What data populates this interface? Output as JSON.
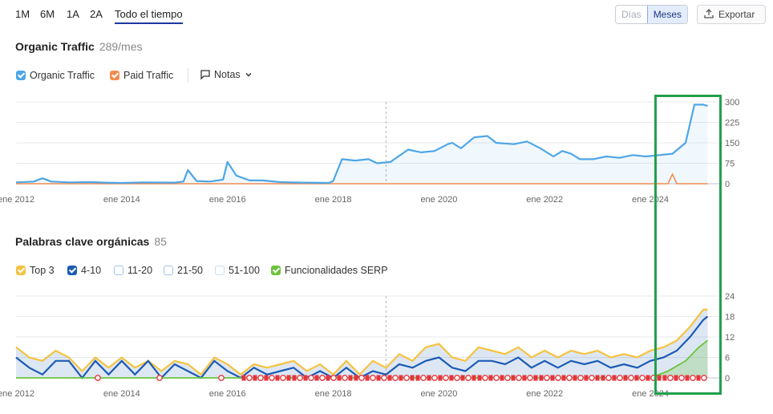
{
  "range_tabs": {
    "t1": "1M",
    "t2": "6M",
    "t3": "1A",
    "t4": "2A",
    "t5": "Todo el tiempo"
  },
  "granularity": {
    "days": "Días",
    "months": "Meses"
  },
  "export_label": "Exportar",
  "traffic": {
    "title": "Organic Traffic",
    "subtitle": "289/mes",
    "legend_organic": "Organic Traffic",
    "legend_paid": "Paid Traffic",
    "notes": "Notas"
  },
  "keywords": {
    "title": "Palabras clave orgánicas",
    "subtitle": "85",
    "legend_top3": "Top 3",
    "legend_4_10": "4-10",
    "legend_11_20": "11-20",
    "legend_21_50": "21-50",
    "legend_51_100": "51-100",
    "legend_serp": "Funcionalidades SERP"
  },
  "colors": {
    "organic": "#4ea6e6",
    "paid": "#f28b4f",
    "top3": "#f5c342",
    "k4_10": "#1d5bb4",
    "serp": "#6cc33c",
    "highlight": "#22a04b",
    "marker_red": "#e8323c"
  },
  "chart_data": [
    {
      "type": "area",
      "title": "Organic Traffic",
      "x_ticks": [
        "ene 2012",
        "ene 2014",
        "ene 2016",
        "ene 2018",
        "ene 2020",
        "ene 2022",
        "ene 2024"
      ],
      "y_ticks": [
        "300",
        "225",
        "150",
        "75",
        "0"
      ],
      "ylim": [
        0,
        300
      ],
      "xlim": [
        "2012-01",
        "2025-03"
      ],
      "series": [
        {
          "name": "Organic Traffic",
          "points": [
            [
              "2012-01",
              5
            ],
            [
              "2012-05",
              8
            ],
            [
              "2012-07",
              20
            ],
            [
              "2012-09",
              8
            ],
            [
              "2013-01",
              5
            ],
            [
              "2013-06",
              6
            ],
            [
              "2013-09",
              4
            ],
            [
              "2014-01",
              3
            ],
            [
              "2014-06",
              5
            ],
            [
              "2015-01",
              4
            ],
            [
              "2015-03",
              8
            ],
            [
              "2015-04",
              50
            ],
            [
              "2015-06",
              10
            ],
            [
              "2015-09",
              8
            ],
            [
              "2015-12",
              15
            ],
            [
              "2016-01",
              80
            ],
            [
              "2016-03",
              30
            ],
            [
              "2016-06",
              12
            ],
            [
              "2016-09",
              12
            ],
            [
              "2017-01",
              6
            ],
            [
              "2017-06",
              4
            ],
            [
              "2017-12",
              3
            ],
            [
              "2018-01",
              10
            ],
            [
              "2018-03",
              90
            ],
            [
              "2018-06",
              85
            ],
            [
              "2018-09",
              90
            ],
            [
              "2018-11",
              75
            ],
            [
              "2019-02",
              80
            ],
            [
              "2019-06",
              125
            ],
            [
              "2019-09",
              115
            ],
            [
              "2019-12",
              120
            ],
            [
              "2020-03",
              145
            ],
            [
              "2020-04",
              150
            ],
            [
              "2020-06",
              130
            ],
            [
              "2020-09",
              170
            ],
            [
              "2020-12",
              175
            ],
            [
              "2021-02",
              150
            ],
            [
              "2021-06",
              145
            ],
            [
              "2021-09",
              155
            ],
            [
              "2021-12",
              130
            ],
            [
              "2022-03",
              100
            ],
            [
              "2022-05",
              120
            ],
            [
              "2022-07",
              110
            ],
            [
              "2022-09",
              90
            ],
            [
              "2022-12",
              90
            ],
            [
              "2023-03",
              100
            ],
            [
              "2023-06",
              95
            ],
            [
              "2023-09",
              105
            ],
            [
              "2023-12",
              100
            ],
            [
              "2024-03",
              105
            ],
            [
              "2024-06",
              110
            ],
            [
              "2024-09",
              150
            ],
            [
              "2024-11",
              290
            ],
            [
              "2025-01",
              290
            ],
            [
              "2025-02",
              285
            ]
          ]
        },
        {
          "name": "Paid Traffic",
          "points": [
            [
              "2012-01",
              0
            ],
            [
              "2024-01",
              0
            ],
            [
              "2024-05",
              0
            ],
            [
              "2024-06",
              35
            ],
            [
              "2024-07",
              0
            ],
            [
              "2025-02",
              0
            ]
          ]
        }
      ]
    },
    {
      "type": "area",
      "title": "Palabras clave orgánicas",
      "x_ticks": [
        "ene 2012",
        "ene 2014",
        "ene 2016",
        "ene 2018",
        "ene 2020",
        "ene 2022",
        "ene 2024"
      ],
      "y_ticks": [
        "24",
        "18",
        "12",
        "6",
        "0"
      ],
      "ylim": [
        0,
        24
      ],
      "xlim": [
        "2012-01",
        "2025-03"
      ],
      "series": [
        {
          "name": "Top 3",
          "points": [
            [
              "2012-01",
              9
            ],
            [
              "2012-04",
              6
            ],
            [
              "2012-07",
              5
            ],
            [
              "2012-10",
              8
            ],
            [
              "2013-01",
              6
            ],
            [
              "2013-04",
              2
            ],
            [
              "2013-07",
              6
            ],
            [
              "2013-10",
              3
            ],
            [
              "2014-01",
              6
            ],
            [
              "2014-04",
              3
            ],
            [
              "2014-07",
              5
            ],
            [
              "2014-10",
              2
            ],
            [
              "2015-01",
              5
            ],
            [
              "2015-04",
              4
            ],
            [
              "2015-07",
              1
            ],
            [
              "2015-10",
              6
            ],
            [
              "2016-01",
              4
            ],
            [
              "2016-04",
              1
            ],
            [
              "2016-07",
              4
            ],
            [
              "2016-10",
              3
            ],
            [
              "2017-01",
              4
            ],
            [
              "2017-04",
              5
            ],
            [
              "2017-07",
              2
            ],
            [
              "2017-10",
              4
            ],
            [
              "2018-01",
              1
            ],
            [
              "2018-04",
              5
            ],
            [
              "2018-07",
              1
            ],
            [
              "2018-10",
              5
            ],
            [
              "2019-01",
              3
            ],
            [
              "2019-04",
              7
            ],
            [
              "2019-07",
              5
            ],
            [
              "2019-10",
              9
            ],
            [
              "2020-01",
              10
            ],
            [
              "2020-04",
              6
            ],
            [
              "2020-07",
              5
            ],
            [
              "2020-10",
              9
            ],
            [
              "2021-01",
              8
            ],
            [
              "2021-04",
              7
            ],
            [
              "2021-07",
              9
            ],
            [
              "2021-10",
              6
            ],
            [
              "2022-01",
              8
            ],
            [
              "2022-04",
              6
            ],
            [
              "2022-07",
              8
            ],
            [
              "2022-10",
              7
            ],
            [
              "2023-01",
              8
            ],
            [
              "2023-04",
              6
            ],
            [
              "2023-07",
              7
            ],
            [
              "2023-10",
              6
            ],
            [
              "2024-01",
              8
            ],
            [
              "2024-04",
              9
            ],
            [
              "2024-07",
              11
            ],
            [
              "2024-10",
              15
            ],
            [
              "2025-01",
              20
            ],
            [
              "2025-02",
              20
            ]
          ]
        },
        {
          "name": "4-10",
          "points": [
            [
              "2012-01",
              6
            ],
            [
              "2012-04",
              3
            ],
            [
              "2012-07",
              1
            ],
            [
              "2012-10",
              5
            ],
            [
              "2013-01",
              5
            ],
            [
              "2013-04",
              0
            ],
            [
              "2013-07",
              5
            ],
            [
              "2013-10",
              1
            ],
            [
              "2014-01",
              5
            ],
            [
              "2014-04",
              1
            ],
            [
              "2014-07",
              5
            ],
            [
              "2014-10",
              0
            ],
            [
              "2015-01",
              4
            ],
            [
              "2015-04",
              2
            ],
            [
              "2015-07",
              0
            ],
            [
              "2015-10",
              5
            ],
            [
              "2016-01",
              2
            ],
            [
              "2016-04",
              0
            ],
            [
              "2016-07",
              3
            ],
            [
              "2016-10",
              1
            ],
            [
              "2017-01",
              2
            ],
            [
              "2017-04",
              3
            ],
            [
              "2017-07",
              0
            ],
            [
              "2017-10",
              2
            ],
            [
              "2018-01",
              0
            ],
            [
              "2018-04",
              3
            ],
            [
              "2018-07",
              0
            ],
            [
              "2018-10",
              2
            ],
            [
              "2019-01",
              1
            ],
            [
              "2019-04",
              4
            ],
            [
              "2019-07",
              3
            ],
            [
              "2019-10",
              5
            ],
            [
              "2020-01",
              6
            ],
            [
              "2020-04",
              3
            ],
            [
              "2020-07",
              2
            ],
            [
              "2020-10",
              5
            ],
            [
              "2021-01",
              5
            ],
            [
              "2021-04",
              4
            ],
            [
              "2021-07",
              6
            ],
            [
              "2021-10",
              3
            ],
            [
              "2022-01",
              5
            ],
            [
              "2022-04",
              3
            ],
            [
              "2022-07",
              5
            ],
            [
              "2022-10",
              4
            ],
            [
              "2023-01",
              5
            ],
            [
              "2023-04",
              3
            ],
            [
              "2023-07",
              4
            ],
            [
              "2023-10",
              3
            ],
            [
              "2024-01",
              5
            ],
            [
              "2024-04",
              6
            ],
            [
              "2024-07",
              8
            ],
            [
              "2024-10",
              12
            ],
            [
              "2025-01",
              17
            ],
            [
              "2025-02",
              18
            ]
          ]
        },
        {
          "name": "Funcionalidades SERP",
          "points": [
            [
              "2012-01",
              0
            ],
            [
              "2024-01",
              0
            ],
            [
              "2024-05",
              2
            ],
            [
              "2024-09",
              5
            ],
            [
              "2024-12",
              9
            ],
            [
              "2025-02",
              11
            ]
          ]
        }
      ]
    }
  ]
}
